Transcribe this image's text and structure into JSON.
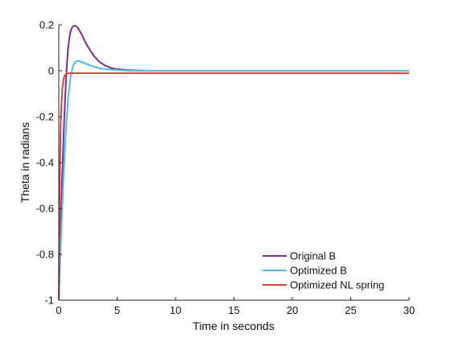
{
  "chart_data": {
    "type": "line",
    "title": "",
    "xlabel": "Time in seconds",
    "ylabel": "Theta in radians",
    "xlim": [
      0,
      30
    ],
    "ylim": [
      -1,
      0.2
    ],
    "xticks": [
      0,
      5,
      10,
      15,
      20,
      25,
      30
    ],
    "xtick_labels": [
      "0",
      "5",
      "10",
      "15",
      "20",
      "25",
      "30"
    ],
    "yticks": [
      -1,
      -0.8,
      -0.6,
      -0.4,
      -0.2,
      0,
      0.2
    ],
    "ytick_labels": [
      "-1",
      "-0.8",
      "-0.6",
      "-0.4",
      "-0.2",
      "0",
      "0.2"
    ],
    "grid": false,
    "legend_position": "bottom-right",
    "series": [
      {
        "name": "Original B",
        "color": "#7e2f8e",
        "x": [
          0,
          0.1,
          0.2,
          0.3,
          0.4,
          0.5,
          0.6,
          0.7,
          0.8,
          0.9,
          1.0,
          1.1,
          1.2,
          1.3,
          1.4,
          1.5,
          1.6,
          1.7,
          1.8,
          2.0,
          2.2,
          2.5,
          3.0,
          3.5,
          4.0,
          4.5,
          5.0,
          6.0,
          7.0,
          8.0,
          10.0,
          15.0,
          20.0,
          25.0,
          30.0
        ],
        "y": [
          -1.0,
          -0.81,
          -0.62,
          -0.45,
          -0.3,
          -0.17,
          -0.06,
          0.03,
          0.1,
          0.14,
          0.17,
          0.185,
          0.193,
          0.196,
          0.196,
          0.194,
          0.19,
          0.182,
          0.173,
          0.155,
          0.132,
          0.104,
          0.065,
          0.038,
          0.022,
          0.012,
          0.007,
          0.003,
          0.001,
          0.0,
          0.0,
          0.0,
          0.0,
          0.0,
          0.0
        ]
      },
      {
        "name": "Optimized B",
        "color": "#4dbeee",
        "x": [
          0,
          0.2,
          0.4,
          0.6,
          0.8,
          1.0,
          1.2,
          1.4,
          1.6,
          1.8,
          2.0,
          2.2,
          2.5,
          3.0,
          3.5,
          4.0,
          5.0,
          6.0,
          7.0,
          8.0,
          10.0,
          15.0,
          20.0,
          25.0,
          30.0
        ],
        "y": [
          -1.0,
          -0.72,
          -0.47,
          -0.27,
          -0.12,
          -0.03,
          0.02,
          0.038,
          0.043,
          0.042,
          0.038,
          0.034,
          0.027,
          0.018,
          0.011,
          0.007,
          0.003,
          0.001,
          0.0,
          0.0,
          0.0,
          0.0,
          0.0,
          0.0,
          0.0
        ]
      },
      {
        "name": "Optimized NL spring",
        "color": "#d9423d",
        "x": [
          0,
          0.05,
          0.1,
          0.15,
          0.2,
          0.3,
          0.4,
          0.5,
          0.7,
          1.0,
          2.0,
          5.0,
          10.0,
          15.0,
          20.0,
          25.0,
          30.0
        ],
        "y": [
          -1.0,
          -0.66,
          -0.42,
          -0.27,
          -0.17,
          -0.08,
          -0.04,
          -0.02,
          -0.012,
          -0.01,
          -0.01,
          -0.01,
          -0.01,
          -0.01,
          -0.01,
          -0.01,
          -0.01
        ]
      }
    ]
  }
}
